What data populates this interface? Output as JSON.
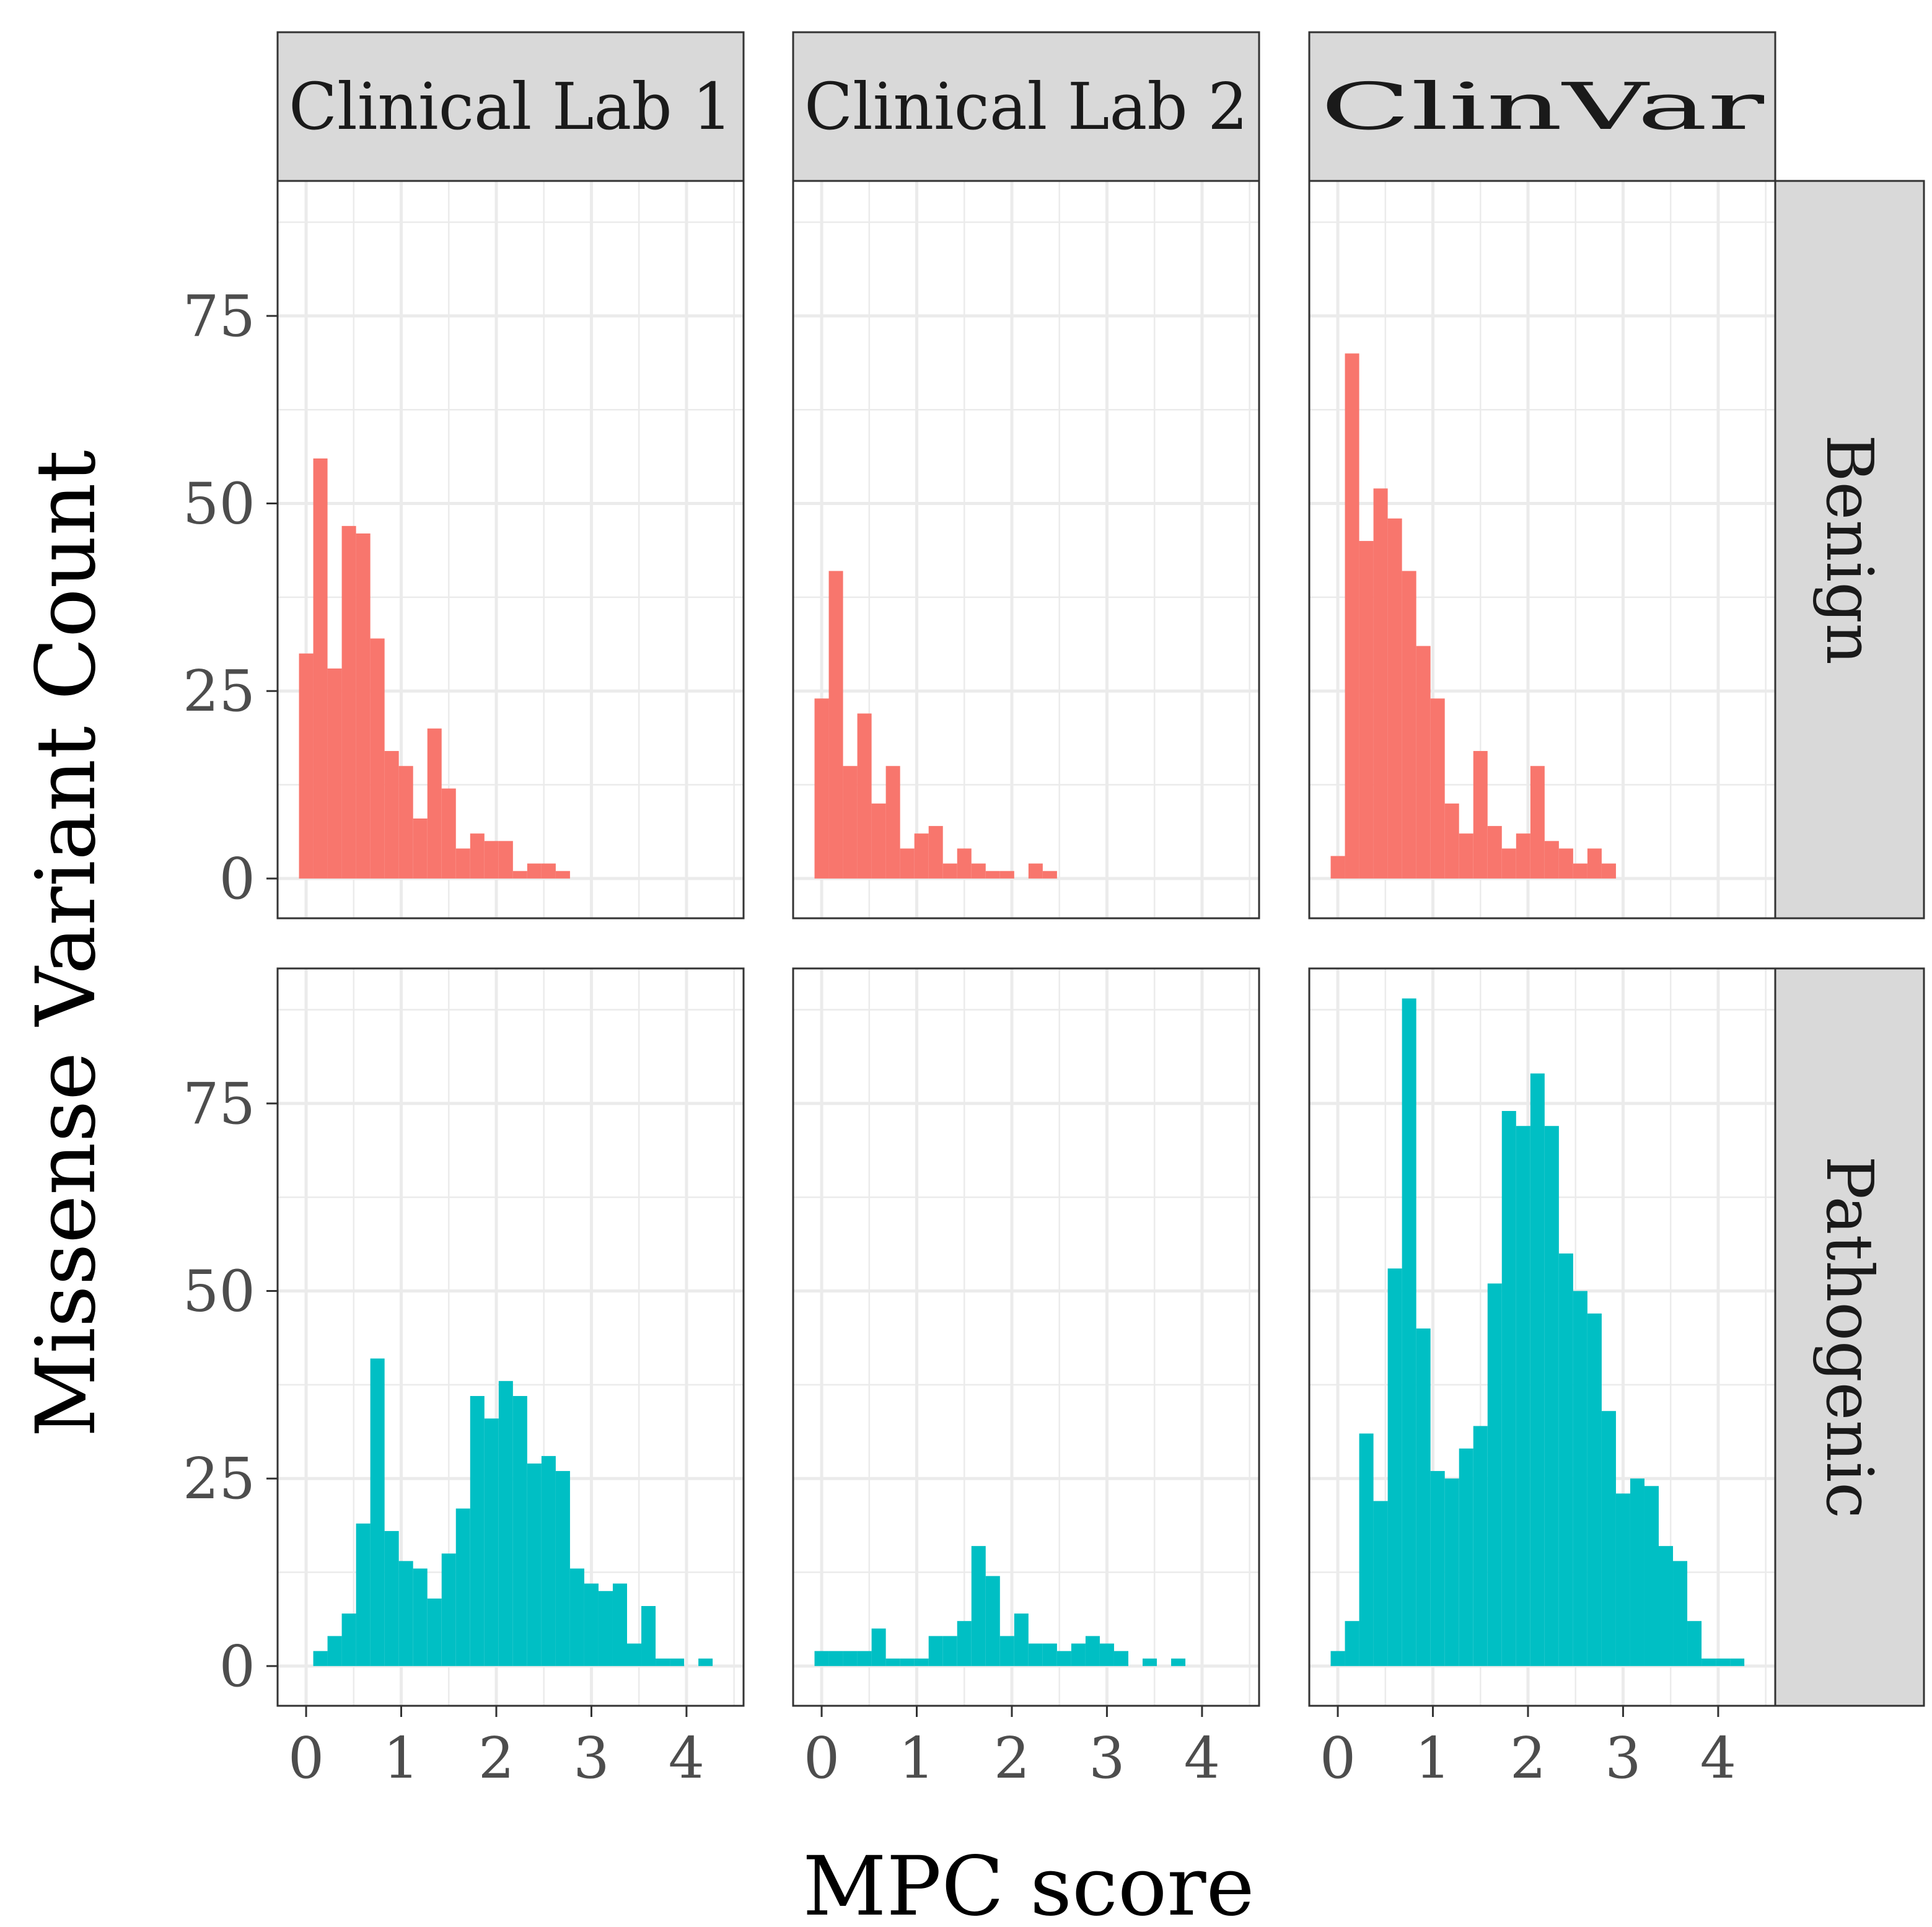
{
  "chart_data": {
    "type": "bar",
    "chart_kind": "faceted histogram",
    "xlabel": "MPC score",
    "ylabel": "Missense Variant Count",
    "xlim": [
      -0.3,
      4.6
    ],
    "ylim": [
      -5.3,
      93
    ],
    "x_ticks": [
      "0",
      "1",
      "2",
      "3",
      "4"
    ],
    "y_ticks": [
      "0",
      "25",
      "50",
      "75"
    ],
    "x_tick_values": [
      0,
      1,
      2,
      3,
      4
    ],
    "y_tick_values": [
      0,
      25,
      50,
      75
    ],
    "bin_width": 0.15,
    "bin_starts": [
      -0.075,
      0.075,
      0.225,
      0.375,
      0.525,
      0.675,
      0.825,
      0.975,
      1.125,
      1.275,
      1.425,
      1.575,
      1.725,
      1.875,
      2.025,
      2.175,
      2.325,
      2.475,
      2.625,
      2.775,
      2.925,
      3.075,
      3.225,
      3.375,
      3.525,
      3.675,
      3.825,
      3.975,
      4.125,
      4.275
    ],
    "facet_columns": [
      "Clinical Lab 1",
      "Clinical Lab 2",
      "ClinVar"
    ],
    "facet_rows": [
      "Benign",
      "Pathogenic"
    ],
    "grid": true,
    "legend": "none",
    "colors": {
      "Benign": "#F8766D",
      "Pathogenic": "#00BFC4"
    },
    "panels": [
      {
        "column": "Clinical Lab 1",
        "row": "Benign",
        "values": [
          30,
          56,
          28,
          47,
          46,
          32,
          17,
          15,
          8,
          20,
          12,
          4,
          6,
          5,
          5,
          1,
          2,
          2,
          1,
          0,
          0,
          0,
          0,
          0,
          0,
          0,
          0,
          0,
          0,
          0
        ]
      },
      {
        "column": "Clinical Lab 2",
        "row": "Benign",
        "values": [
          24,
          41,
          15,
          22,
          10,
          15,
          4,
          6,
          7,
          2,
          4,
          2,
          1,
          1,
          0,
          2,
          1,
          0,
          0,
          0,
          0,
          0,
          0,
          0,
          0,
          0,
          0,
          0,
          0,
          0
        ]
      },
      {
        "column": "ClinVar",
        "row": "Benign",
        "values": [
          3,
          70,
          45,
          52,
          48,
          41,
          31,
          24,
          10,
          6,
          17,
          7,
          4,
          6,
          15,
          5,
          4,
          2,
          4,
          2,
          0,
          0,
          0,
          0,
          0,
          0,
          0,
          0,
          0,
          0
        ]
      },
      {
        "column": "Clinical Lab 1",
        "row": "Pathogenic",
        "values": [
          0,
          2,
          4,
          7,
          19,
          41,
          18,
          14,
          13,
          9,
          15,
          21,
          36,
          33,
          38,
          36,
          27,
          28,
          26,
          13,
          11,
          10,
          11,
          3,
          8,
          1,
          1,
          0,
          1,
          0
        ]
      },
      {
        "column": "Clinical Lab 2",
        "row": "Pathogenic",
        "values": [
          2,
          2,
          2,
          2,
          5,
          1,
          1,
          1,
          4,
          4,
          6,
          16,
          12,
          4,
          7,
          3,
          3,
          2,
          3,
          4,
          3,
          2,
          0,
          1,
          0,
          1,
          0,
          0,
          0,
          0
        ]
      },
      {
        "column": "ClinVar",
        "row": "Pathogenic",
        "values": [
          2,
          6,
          31,
          22,
          53,
          89,
          45,
          26,
          25,
          29,
          32,
          51,
          74,
          72,
          79,
          72,
          55,
          50,
          47,
          34,
          23,
          25,
          24,
          16,
          14,
          6,
          1,
          1,
          1,
          0
        ]
      }
    ]
  }
}
